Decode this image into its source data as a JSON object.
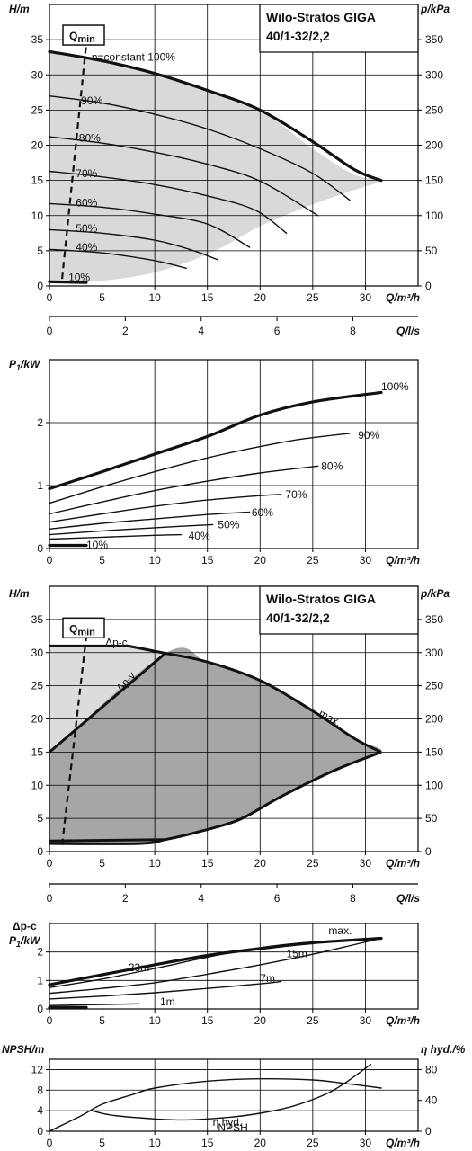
{
  "header": {
    "title_line1": "Wilo-Stratos GIGA",
    "title_line2": "40/1-32/2,2"
  },
  "chart_data": [
    {
      "id": "hq1",
      "type": "line",
      "xlabel": "Q/m³/h",
      "ylabel": "H/m",
      "y2label": "p/kPa",
      "xlim": [
        0,
        35
      ],
      "ylim": [
        0,
        40
      ],
      "x_ticks": [
        0,
        5,
        10,
        15,
        20,
        25,
        30
      ],
      "y_ticks": [
        0,
        5,
        10,
        15,
        20,
        25,
        30,
        35
      ],
      "y2_ticks": [
        0,
        50,
        100,
        150,
        200,
        250,
        300,
        350
      ],
      "grid": true,
      "qmin_label": "Q",
      "qmin_sub": "min",
      "qmin_line": [
        [
          1.2,
          1.0
        ],
        [
          3.5,
          34.5
        ]
      ],
      "operating_region": [
        [
          0,
          33.3
        ],
        [
          5,
          32
        ],
        [
          10,
          30
        ],
        [
          15,
          27.8
        ],
        [
          20,
          25
        ],
        [
          25,
          19.5
        ],
        [
          29,
          15.8
        ],
        [
          31.5,
          15
        ],
        [
          28,
          13.2
        ],
        [
          24,
          11
        ],
        [
          20,
          8.5
        ],
        [
          16,
          5.2
        ],
        [
          12,
          2.8
        ],
        [
          8,
          1.3
        ],
        [
          3,
          0.5
        ],
        [
          0,
          0.5
        ]
      ],
      "series": [
        {
          "name": "n=constant 100%",
          "bold": true,
          "label_at": [
            4,
            32.5
          ],
          "points": [
            [
              0,
              33.3
            ],
            [
              5,
              32
            ],
            [
              10,
              30.2
            ],
            [
              15,
              27.8
            ],
            [
              20,
              25
            ],
            [
              25,
              20.5
            ],
            [
              29,
              16.5
            ],
            [
              31.5,
              15
            ]
          ]
        },
        {
          "name": "90%",
          "label_at": [
            3,
            26.3
          ],
          "points": [
            [
              0,
              27
            ],
            [
              5,
              26
            ],
            [
              10,
              24.4
            ],
            [
              15,
              22.3
            ],
            [
              20,
              19.5
            ],
            [
              25,
              16
            ],
            [
              28.5,
              12.2
            ]
          ]
        },
        {
          "name": "80%",
          "label_at": [
            2.8,
            21
          ],
          "points": [
            [
              0,
              21.2
            ],
            [
              5,
              20.3
            ],
            [
              10,
              19
            ],
            [
              15,
              17.3
            ],
            [
              20,
              14.9
            ],
            [
              25.5,
              10
            ]
          ]
        },
        {
          "name": "70%",
          "label_at": [
            2.5,
            16
          ],
          "points": [
            [
              0,
              16.3
            ],
            [
              5,
              15.5
            ],
            [
              10,
              14.4
            ],
            [
              15,
              12.8
            ],
            [
              19.5,
              10.8
            ],
            [
              22.5,
              7.5
            ]
          ]
        },
        {
          "name": "60%",
          "label_at": [
            2.5,
            11.8
          ],
          "points": [
            [
              0,
              11.7
            ],
            [
              5,
              11.2
            ],
            [
              10,
              10.2
            ],
            [
              15,
              8.8
            ],
            [
              19,
              5.5
            ]
          ]
        },
        {
          "name": "50%",
          "label_at": [
            2.5,
            8.2
          ],
          "points": [
            [
              0,
              8
            ],
            [
              5,
              7.5
            ],
            [
              10,
              6.5
            ],
            [
              13.5,
              5.1
            ],
            [
              16,
              3.7
            ]
          ]
        },
        {
          "name": "40%",
          "label_at": [
            2.5,
            5.5
          ],
          "points": [
            [
              0,
              5.2
            ],
            [
              5,
              4.7
            ],
            [
              10,
              3.6
            ],
            [
              13,
              2.5
            ]
          ]
        },
        {
          "name": "10%",
          "bold": true,
          "label_at": [
            1.8,
            1.2
          ],
          "points": [
            [
              0,
              0.6
            ],
            [
              3.5,
              0.5
            ]
          ]
        }
      ]
    },
    {
      "id": "qls1",
      "type": "axis",
      "xlabel": "Q/l/s",
      "xlim": [
        0,
        9.72
      ],
      "x_ticks": [
        0,
        2,
        4,
        6,
        8
      ]
    },
    {
      "id": "p1",
      "type": "line",
      "xlabel": "Q/m³/h",
      "ylabel": "P1/kW",
      "xlim": [
        0,
        35
      ],
      "ylim": [
        0,
        3
      ],
      "x_ticks": [
        0,
        5,
        10,
        15,
        20,
        25,
        30
      ],
      "y_ticks": [
        0,
        1,
        2
      ],
      "grid": true,
      "series": [
        {
          "name": "100%",
          "bold": true,
          "label_at": [
            31.5,
            2.57
          ],
          "points": [
            [
              0,
              0.95
            ],
            [
              5,
              1.22
            ],
            [
              10,
              1.5
            ],
            [
              15,
              1.78
            ],
            [
              20,
              2.12
            ],
            [
              25,
              2.33
            ],
            [
              31.5,
              2.48
            ]
          ]
        },
        {
          "name": "90%",
          "label_at": [
            29.3,
            1.8
          ],
          "points": [
            [
              0,
              0.72
            ],
            [
              5,
              0.98
            ],
            [
              10,
              1.22
            ],
            [
              15,
              1.44
            ],
            [
              20,
              1.62
            ],
            [
              24,
              1.74
            ],
            [
              28.5,
              1.83
            ]
          ]
        },
        {
          "name": "80%",
          "label_at": [
            25.8,
            1.31
          ],
          "points": [
            [
              0,
              0.55
            ],
            [
              5,
              0.74
            ],
            [
              10,
              0.92
            ],
            [
              15,
              1.07
            ],
            [
              20,
              1.2
            ],
            [
              25.5,
              1.31
            ]
          ]
        },
        {
          "name": "70%",
          "label_at": [
            22.4,
            0.86
          ],
          "points": [
            [
              0,
              0.42
            ],
            [
              5,
              0.55
            ],
            [
              10,
              0.67
            ],
            [
              15,
              0.77
            ],
            [
              20,
              0.84
            ],
            [
              22,
              0.86
            ]
          ]
        },
        {
          "name": "60%",
          "label_at": [
            19.2,
            0.57
          ],
          "points": [
            [
              0,
              0.31
            ],
            [
              5,
              0.4
            ],
            [
              10,
              0.47
            ],
            [
              15,
              0.54
            ],
            [
              19,
              0.58
            ]
          ]
        },
        {
          "name": "50%",
          "label_at": [
            16,
            0.38
          ],
          "points": [
            [
              0,
              0.22
            ],
            [
              5,
              0.28
            ],
            [
              10,
              0.33
            ],
            [
              15.5,
              0.38
            ]
          ]
        },
        {
          "name": "40%",
          "label_at": [
            13.2,
            0.2
          ],
          "points": [
            [
              0,
              0.15
            ],
            [
              5,
              0.18
            ],
            [
              10,
              0.21
            ],
            [
              12.5,
              0.22
            ]
          ]
        },
        {
          "name": "10%",
          "bold": true,
          "label_at": [
            3.5,
            0.06
          ],
          "points": [
            [
              0,
              0.05
            ],
            [
              3.5,
              0.05
            ]
          ]
        }
      ]
    },
    {
      "id": "hq2",
      "type": "line",
      "xlabel": "Q/m³/h",
      "ylabel": "H/m",
      "y2label": "p/kPa",
      "xlim": [
        0,
        35
      ],
      "ylim": [
        0,
        40
      ],
      "x_ticks": [
        0,
        5,
        10,
        15,
        20,
        25,
        30
      ],
      "y_ticks": [
        0,
        5,
        10,
        15,
        20,
        25,
        30,
        35
      ],
      "y2_ticks": [
        0,
        50,
        100,
        150,
        200,
        250,
        300,
        350
      ],
      "grid": true,
      "qmin_label": "Q",
      "qmin_sub": "min",
      "qmin_line": [
        [
          1.2,
          1.0
        ],
        [
          3.5,
          32.5
        ]
      ],
      "light_region": [
        [
          0,
          31
        ],
        [
          7.5,
          31
        ],
        [
          11,
          29.9
        ],
        [
          0,
          15
        ]
      ],
      "dark_region": [
        [
          0,
          15
        ],
        [
          11,
          29.9
        ],
        [
          15,
          28.6
        ],
        [
          20,
          25.8
        ],
        [
          25,
          21.2
        ],
        [
          29,
          17
        ],
        [
          31.5,
          15
        ],
        [
          27,
          12.2
        ],
        [
          22,
          8.3
        ],
        [
          18,
          4.8
        ],
        [
          14,
          2.9
        ],
        [
          11,
          1.8
        ],
        [
          8.5,
          1.2
        ],
        [
          0,
          1.2
        ]
      ],
      "series": [
        {
          "name": "Δp-c",
          "label_at": [
            5.3,
            31.5
          ],
          "points": [
            [
              0,
              31
            ],
            [
              7.5,
              31
            ],
            [
              11,
              29.9
            ]
          ]
        },
        {
          "name": "Δp-v",
          "label_at": [
            6.8,
            24
          ],
          "points": [
            [
              0,
              15
            ],
            [
              11,
              29.9
            ]
          ]
        },
        {
          "name": "max.",
          "label_at": [
            25.5,
            20.5
          ],
          "points": [
            [
              11,
              29.9
            ],
            [
              15,
              28.6
            ],
            [
              20,
              25.8
            ],
            [
              25,
              21.2
            ],
            [
              29,
              17
            ],
            [
              31.5,
              15
            ]
          ]
        },
        {
          "name": "",
          "points": [
            [
              31.5,
              15
            ],
            [
              27,
              12.2
            ],
            [
              22,
              8.3
            ],
            [
              18,
              4.8
            ],
            [
              14,
              2.9
            ],
            [
              11,
              1.8
            ],
            [
              8.5,
              1.2
            ],
            [
              0,
              1.2
            ]
          ]
        },
        {
          "name": "",
          "points": [
            [
              0,
              1.6
            ],
            [
              11,
              1.8
            ]
          ]
        }
      ]
    },
    {
      "id": "qls2",
      "type": "axis",
      "xlabel": "Q/l/s",
      "xlim": [
        0,
        9.72
      ],
      "x_ticks": [
        0,
        2,
        4,
        6,
        8
      ]
    },
    {
      "id": "p2",
      "type": "line",
      "xlabel": "Q/m³/h",
      "ylabel_top": "Δp-c",
      "ylabel": "P1/kW",
      "xlim": [
        0,
        35
      ],
      "ylim": [
        0,
        3
      ],
      "x_ticks": [
        0,
        5,
        10,
        15,
        20,
        25,
        30
      ],
      "y_ticks": [
        0,
        1,
        2
      ],
      "grid": true,
      "series": [
        {
          "name": "max.",
          "bold": true,
          "label_at": [
            26.5,
            2.75
          ],
          "points": [
            [
              0,
              0.85
            ],
            [
              5,
              1.2
            ],
            [
              10,
              1.55
            ],
            [
              15,
              1.88
            ],
            [
              20,
              2.12
            ],
            [
              25,
              2.32
            ],
            [
              31.5,
              2.48
            ]
          ]
        },
        {
          "name": "23m",
          "label_at": [
            7.5,
            1.45
          ],
          "points": [
            [
              0,
              0.75
            ],
            [
              5,
              1.05
            ],
            [
              10,
              1.42
            ],
            [
              15,
              1.82
            ],
            [
              20,
              2.15
            ],
            [
              25,
              2.35
            ],
            [
              31.5,
              2.48
            ]
          ]
        },
        {
          "name": "15m",
          "label_at": [
            22.5,
            1.95
          ],
          "points": [
            [
              0,
              0.55
            ],
            [
              5,
              0.72
            ],
            [
              10,
              0.92
            ],
            [
              15,
              1.22
            ],
            [
              20,
              1.55
            ],
            [
              25,
              1.92
            ],
            [
              31.5,
              2.48
            ]
          ]
        },
        {
          "name": "7m",
          "label_at": [
            20,
            1.08
          ],
          "points": [
            [
              0,
              0.35
            ],
            [
              5,
              0.45
            ],
            [
              10,
              0.57
            ],
            [
              15,
              0.72
            ],
            [
              20,
              0.88
            ],
            [
              22,
              0.96
            ]
          ]
        },
        {
          "name": "1m",
          "label_at": [
            10.5,
            0.25
          ],
          "points": [
            [
              0,
              0.12
            ],
            [
              4,
              0.15
            ],
            [
              8.5,
              0.18
            ]
          ]
        },
        {
          "name": "",
          "bold": true,
          "points": [
            [
              0,
              0.05
            ],
            [
              3.5,
              0.05
            ]
          ]
        }
      ]
    },
    {
      "id": "npsh",
      "type": "line",
      "xlabel": "Q/m³/h",
      "ylabel": "NPSH/m",
      "y2label": "η hyd./%",
      "xlim": [
        0,
        35
      ],
      "ylim": [
        0,
        14
      ],
      "y2lim": [
        0,
        93.3
      ],
      "x_ticks": [
        0,
        5,
        10,
        15,
        20,
        25,
        30
      ],
      "y_ticks": [
        0,
        4,
        8,
        12
      ],
      "y2_ticks": [
        0,
        40,
        80
      ],
      "grid": true,
      "series": [
        {
          "name": "η hyd.",
          "axis": "y2",
          "label_at": [
            15.5,
            11.8
          ],
          "points": [
            [
              0,
              0
            ],
            [
              3,
              20
            ],
            [
              5,
              35
            ],
            [
              8,
              48
            ],
            [
              10,
              56
            ],
            [
              15,
              65
            ],
            [
              20,
              68
            ],
            [
              25,
              66.5
            ],
            [
              28,
              62
            ],
            [
              31.5,
              56
            ]
          ]
        },
        {
          "name": "NPSH",
          "label_at": [
            16,
            0.7
          ],
          "points": [
            [
              4,
              4
            ],
            [
              6,
              3.1
            ],
            [
              10,
              2.4
            ],
            [
              13,
              2.2
            ],
            [
              17,
              2.7
            ],
            [
              20,
              3.5
            ],
            [
              23,
              4.8
            ],
            [
              26,
              7
            ],
            [
              28,
              9.3
            ],
            [
              30.5,
              13
            ]
          ]
        }
      ]
    }
  ]
}
